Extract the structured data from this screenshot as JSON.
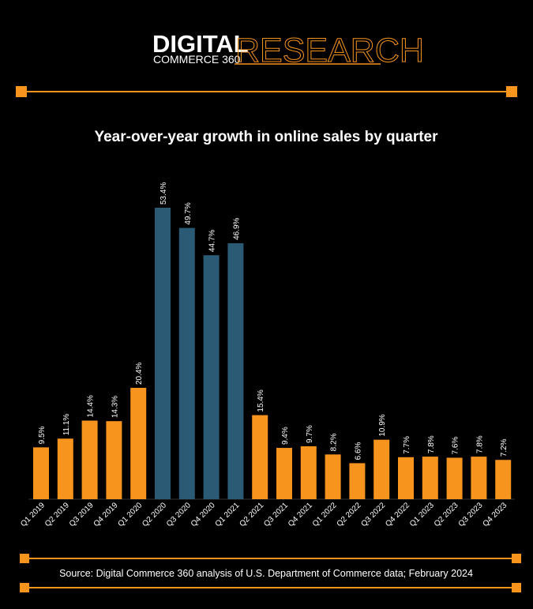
{
  "header": {
    "brand_bold": "DIGITAL",
    "brand_sub": "COMMERCE 360",
    "brand_light": "RESEARCH"
  },
  "chart_data": {
    "type": "bar",
    "title": "Year-over-year growth in online sales by quarter",
    "categories": [
      "Q1 2019",
      "Q2 2019",
      "Q3 2019",
      "Q4 2019",
      "Q1 2020",
      "Q2 2020",
      "Q3 2020",
      "Q4 2020",
      "Q1 2021",
      "Q2 2021",
      "Q3 2021",
      "Q4 2021",
      "Q1 2022",
      "Q2 2022",
      "Q3 2022",
      "Q4 2022",
      "Q1 2023",
      "Q2 2023",
      "Q3 2023",
      "Q4 2023"
    ],
    "values": [
      9.5,
      11.1,
      14.4,
      14.3,
      20.4,
      53.4,
      49.7,
      44.7,
      46.9,
      15.4,
      9.4,
      9.7,
      8.2,
      6.6,
      10.9,
      7.7,
      7.8,
      7.6,
      7.8,
      7.2
    ],
    "value_labels": [
      "9.5%",
      "11.1%",
      "14.4%",
      "14.3%",
      "20.4%",
      "53.4%",
      "49.7%",
      "44.7%",
      "46.9%",
      "15.4%",
      "9.4%",
      "9.7%",
      "8.2%",
      "6.6%",
      "10.9%",
      "7.7%",
      "7.8%",
      "7.6%",
      "7.8%",
      "7.2%"
    ],
    "colors": [
      "#f7941d",
      "#f7941d",
      "#f7941d",
      "#f7941d",
      "#f7941d",
      "#2b5a75",
      "#2b5a75",
      "#2b5a75",
      "#2b5a75",
      "#f7941d",
      "#f7941d",
      "#f7941d",
      "#f7941d",
      "#f7941d",
      "#f7941d",
      "#f7941d",
      "#f7941d",
      "#f7941d",
      "#f7941d",
      "#f7941d"
    ],
    "source": "Source: Digital Commerce 360 analysis of U.S. Department of Commerce data; February 2024"
  }
}
